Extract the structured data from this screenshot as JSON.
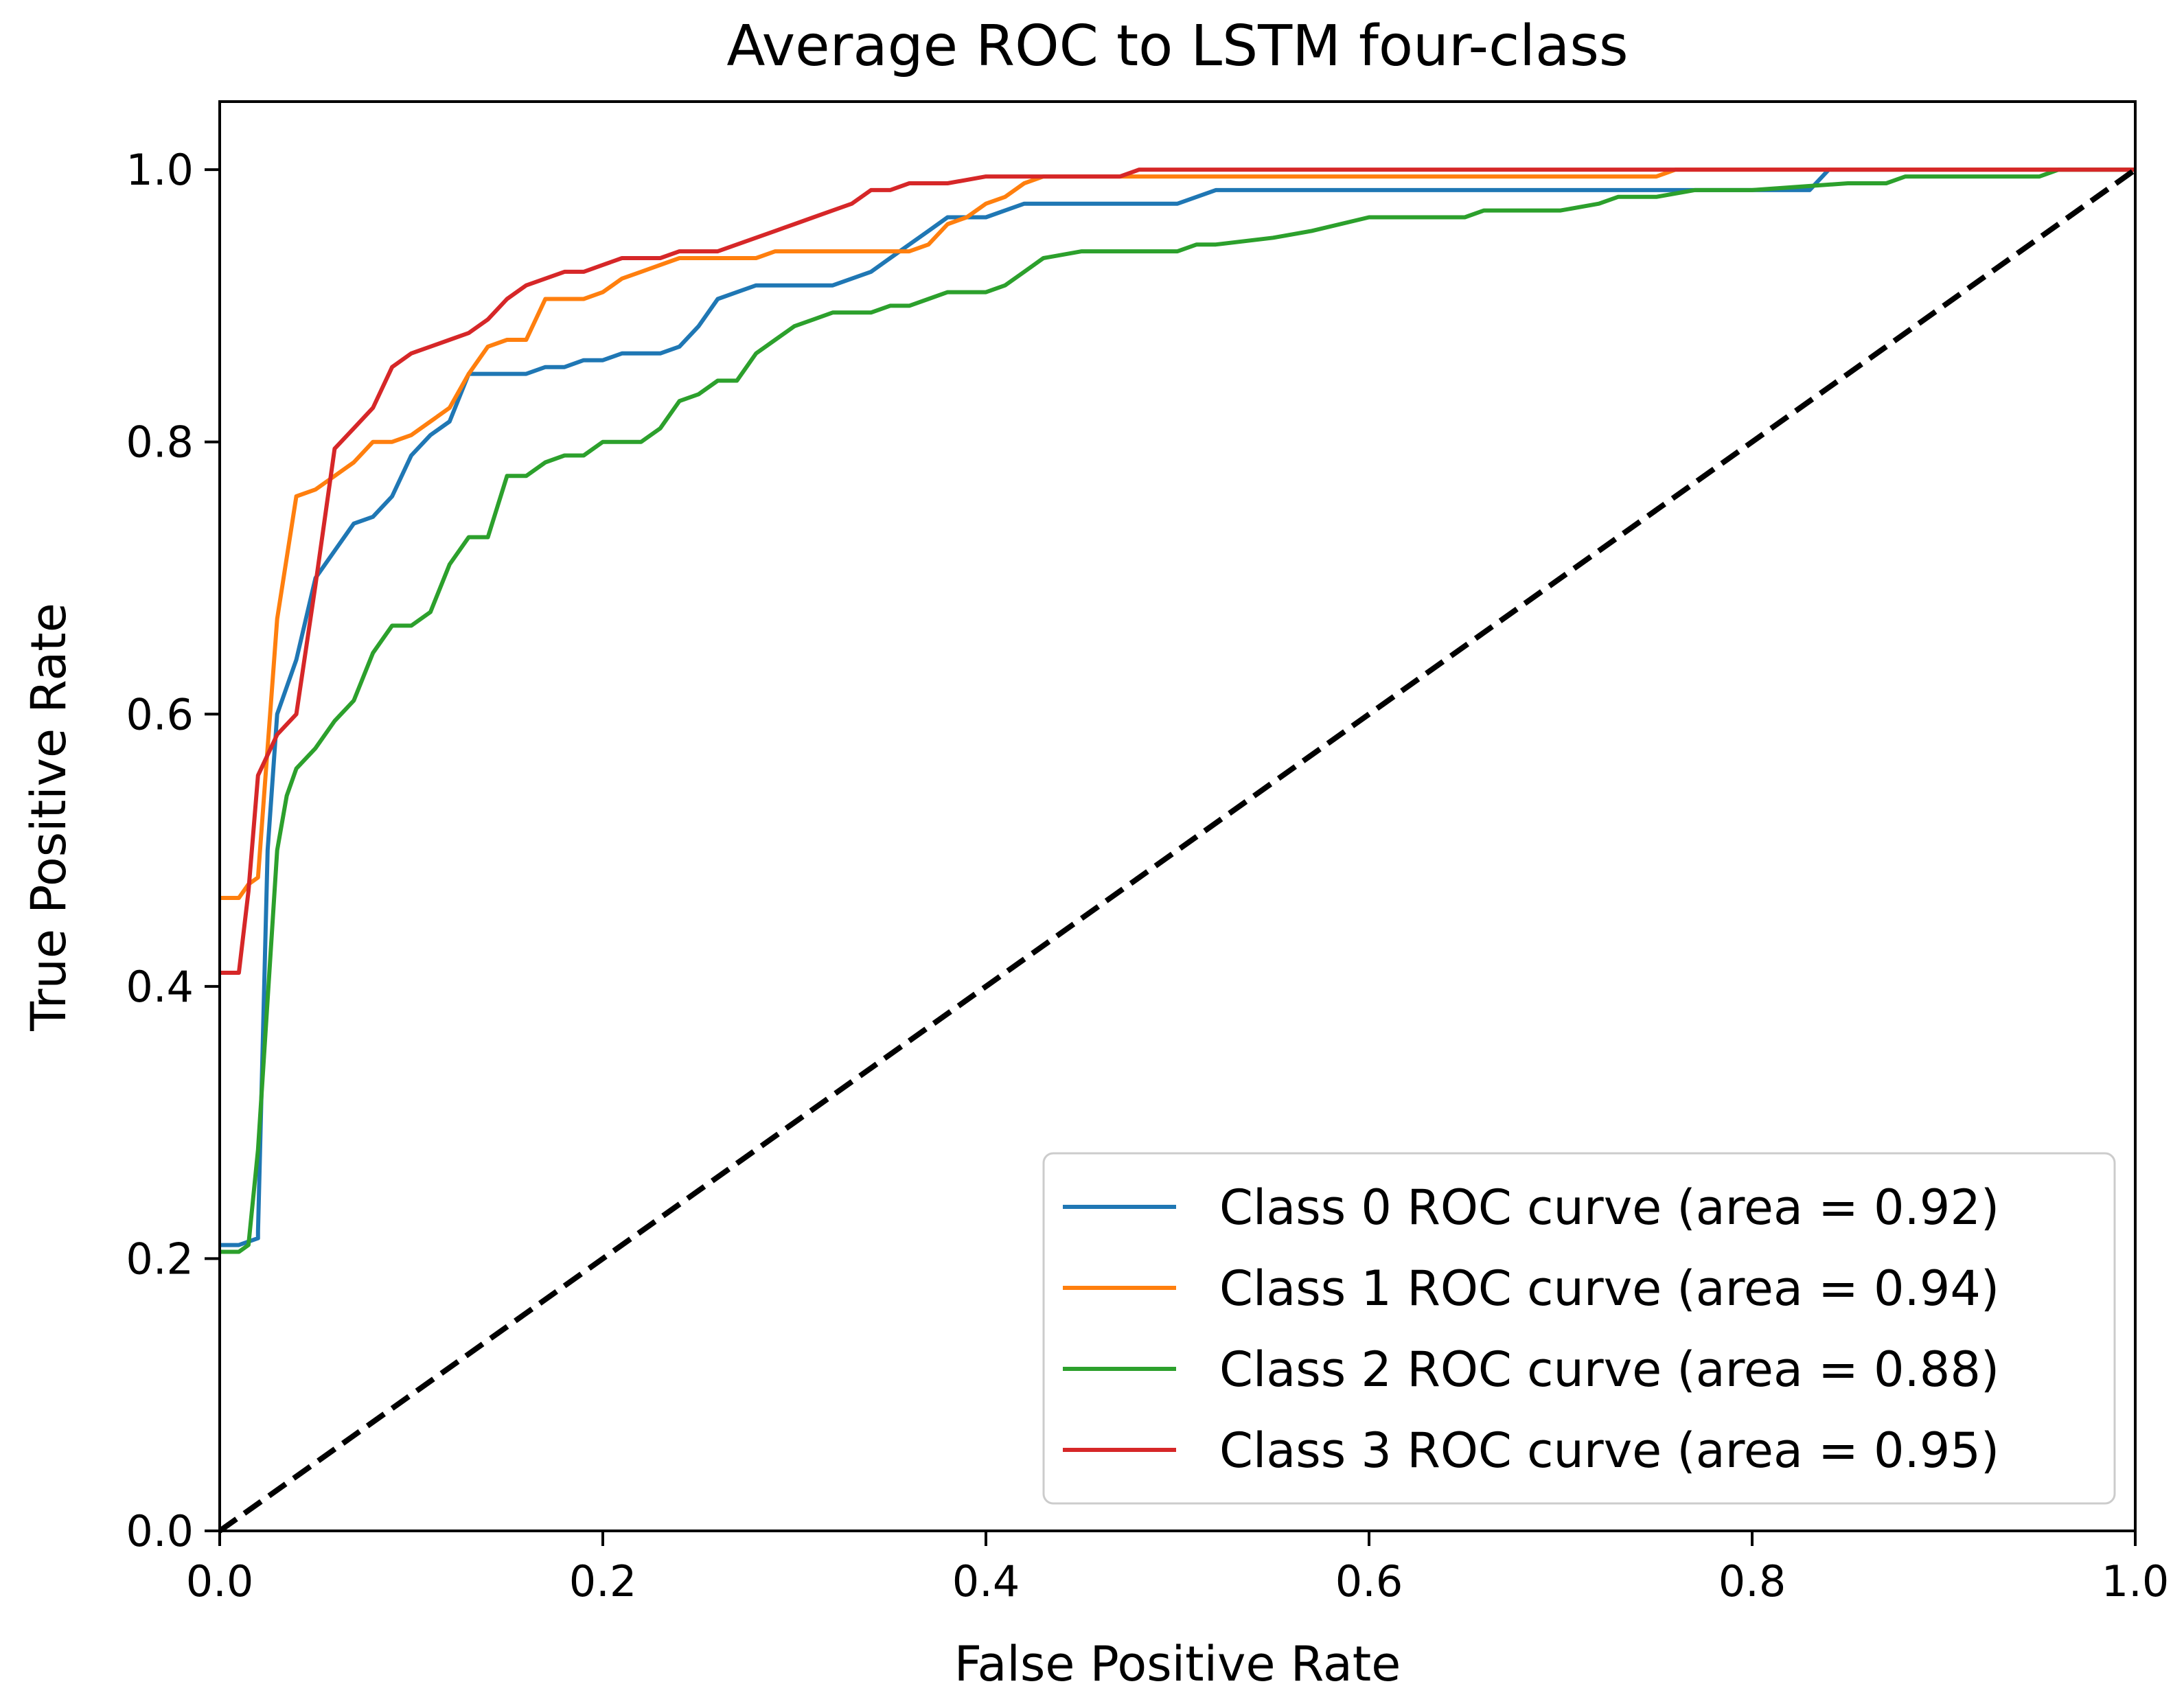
{
  "chart_data": {
    "type": "line",
    "title": "Average ROC to LSTM four-class",
    "xlabel": "False Positive Rate",
    "ylabel": "True Positive Rate",
    "xlim": [
      0.0,
      1.0
    ],
    "ylim": [
      0.0,
      1.05
    ],
    "xticks": [
      0.0,
      0.2,
      0.4,
      0.6,
      0.8,
      1.0
    ],
    "xtick_labels": [
      "0.0",
      "0.2",
      "0.4",
      "0.6",
      "0.8",
      "1.0"
    ],
    "yticks": [
      0.0,
      0.2,
      0.4,
      0.6,
      0.8,
      1.0
    ],
    "ytick_labels": [
      "0.0",
      "0.2",
      "0.4",
      "0.6",
      "0.8",
      "1.0"
    ],
    "grid": false,
    "legend_position": "lower-right",
    "diagonal": {
      "name": "chance",
      "color": "#000000",
      "style": "dashed",
      "x": [
        0.0,
        1.0
      ],
      "y": [
        0.0,
        1.0
      ]
    },
    "series": [
      {
        "name": "Class 0 ROC curve (area = 0.92)",
        "color": "#1f77b4",
        "x": [
          0.0,
          0.01,
          0.02,
          0.02,
          0.025,
          0.03,
          0.04,
          0.05,
          0.06,
          0.07,
          0.08,
          0.09,
          0.1,
          0.11,
          0.12,
          0.13,
          0.14,
          0.15,
          0.16,
          0.17,
          0.18,
          0.19,
          0.2,
          0.21,
          0.22,
          0.23,
          0.24,
          0.25,
          0.26,
          0.27,
          0.28,
          0.29,
          0.3,
          0.31,
          0.32,
          0.33,
          0.34,
          0.35,
          0.36,
          0.37,
          0.38,
          0.39,
          0.4,
          0.41,
          0.42,
          0.43,
          0.45,
          0.48,
          0.5,
          0.51,
          0.52,
          0.53,
          0.6,
          0.7,
          0.8,
          0.83,
          0.84,
          0.9,
          1.0
        ],
        "y": [
          0.21,
          0.21,
          0.215,
          0.22,
          0.5,
          0.6,
          0.64,
          0.7,
          0.72,
          0.74,
          0.745,
          0.76,
          0.79,
          0.805,
          0.815,
          0.85,
          0.85,
          0.85,
          0.85,
          0.855,
          0.855,
          0.86,
          0.86,
          0.865,
          0.865,
          0.865,
          0.87,
          0.885,
          0.905,
          0.91,
          0.915,
          0.915,
          0.915,
          0.915,
          0.915,
          0.92,
          0.925,
          0.935,
          0.945,
          0.955,
          0.965,
          0.965,
          0.965,
          0.97,
          0.975,
          0.975,
          0.975,
          0.975,
          0.975,
          0.98,
          0.985,
          0.985,
          0.985,
          0.985,
          0.985,
          0.985,
          1.0,
          1.0,
          1.0
        ]
      },
      {
        "name": "Class 1 ROC curve (area = 0.94)",
        "color": "#ff7f0e",
        "x": [
          0.0,
          0.01,
          0.015,
          0.02,
          0.03,
          0.04,
          0.05,
          0.06,
          0.07,
          0.08,
          0.09,
          0.1,
          0.11,
          0.12,
          0.13,
          0.14,
          0.15,
          0.16,
          0.17,
          0.18,
          0.19,
          0.2,
          0.21,
          0.22,
          0.23,
          0.24,
          0.25,
          0.26,
          0.27,
          0.28,
          0.29,
          0.3,
          0.32,
          0.34,
          0.36,
          0.37,
          0.38,
          0.39,
          0.4,
          0.41,
          0.42,
          0.43,
          0.45,
          0.5,
          0.6,
          0.7,
          0.75,
          0.76,
          0.8,
          1.0
        ],
        "y": [
          0.465,
          0.465,
          0.475,
          0.48,
          0.67,
          0.76,
          0.765,
          0.775,
          0.785,
          0.8,
          0.8,
          0.805,
          0.815,
          0.825,
          0.85,
          0.87,
          0.875,
          0.875,
          0.905,
          0.905,
          0.905,
          0.91,
          0.92,
          0.925,
          0.93,
          0.935,
          0.935,
          0.935,
          0.935,
          0.935,
          0.94,
          0.94,
          0.94,
          0.94,
          0.94,
          0.945,
          0.96,
          0.965,
          0.975,
          0.98,
          0.99,
          0.995,
          0.995,
          0.995,
          0.995,
          0.995,
          0.995,
          1.0,
          1.0,
          1.0
        ]
      },
      {
        "name": "Class 2 ROC curve (area = 0.88)",
        "color": "#2ca02c",
        "x": [
          0.0,
          0.01,
          0.015,
          0.02,
          0.03,
          0.035,
          0.04,
          0.05,
          0.06,
          0.07,
          0.08,
          0.09,
          0.1,
          0.11,
          0.12,
          0.13,
          0.14,
          0.15,
          0.16,
          0.17,
          0.18,
          0.19,
          0.2,
          0.21,
          0.22,
          0.23,
          0.24,
          0.25,
          0.26,
          0.27,
          0.28,
          0.29,
          0.3,
          0.31,
          0.32,
          0.33,
          0.34,
          0.35,
          0.36,
          0.37,
          0.38,
          0.39,
          0.4,
          0.41,
          0.42,
          0.43,
          0.45,
          0.48,
          0.5,
          0.51,
          0.52,
          0.55,
          0.57,
          0.6,
          0.65,
          0.66,
          0.7,
          0.72,
          0.73,
          0.75,
          0.77,
          0.78,
          0.8,
          0.85,
          0.87,
          0.88,
          0.9,
          0.95,
          0.96,
          1.0
        ],
        "y": [
          0.205,
          0.205,
          0.21,
          0.28,
          0.5,
          0.54,
          0.56,
          0.575,
          0.595,
          0.61,
          0.645,
          0.665,
          0.665,
          0.675,
          0.71,
          0.73,
          0.73,
          0.775,
          0.775,
          0.785,
          0.79,
          0.79,
          0.8,
          0.8,
          0.8,
          0.81,
          0.83,
          0.835,
          0.845,
          0.845,
          0.865,
          0.875,
          0.885,
          0.89,
          0.895,
          0.895,
          0.895,
          0.9,
          0.9,
          0.905,
          0.91,
          0.91,
          0.91,
          0.915,
          0.925,
          0.935,
          0.94,
          0.94,
          0.94,
          0.945,
          0.945,
          0.95,
          0.955,
          0.965,
          0.965,
          0.97,
          0.97,
          0.975,
          0.98,
          0.98,
          0.985,
          0.985,
          0.985,
          0.99,
          0.99,
          0.995,
          0.995,
          0.995,
          1.0,
          1.0
        ]
      },
      {
        "name": "Class 3 ROC curve (area = 0.95)",
        "color": "#d62728",
        "x": [
          0.0,
          0.01,
          0.015,
          0.02,
          0.03,
          0.04,
          0.05,
          0.06,
          0.07,
          0.08,
          0.09,
          0.1,
          0.11,
          0.12,
          0.13,
          0.14,
          0.15,
          0.16,
          0.17,
          0.18,
          0.19,
          0.2,
          0.21,
          0.22,
          0.23,
          0.24,
          0.25,
          0.26,
          0.27,
          0.28,
          0.29,
          0.3,
          0.31,
          0.32,
          0.33,
          0.34,
          0.35,
          0.36,
          0.38,
          0.4,
          0.42,
          0.45,
          0.47,
          0.48,
          0.5,
          0.6,
          1.0
        ],
        "y": [
          0.41,
          0.41,
          0.47,
          0.555,
          0.585,
          0.6,
          0.695,
          0.795,
          0.81,
          0.825,
          0.855,
          0.865,
          0.87,
          0.875,
          0.88,
          0.89,
          0.905,
          0.915,
          0.92,
          0.925,
          0.925,
          0.93,
          0.935,
          0.935,
          0.935,
          0.94,
          0.94,
          0.94,
          0.945,
          0.95,
          0.955,
          0.96,
          0.965,
          0.97,
          0.975,
          0.985,
          0.985,
          0.99,
          0.99,
          0.995,
          0.995,
          0.995,
          0.995,
          1.0,
          1.0,
          1.0,
          1.0
        ]
      }
    ]
  }
}
